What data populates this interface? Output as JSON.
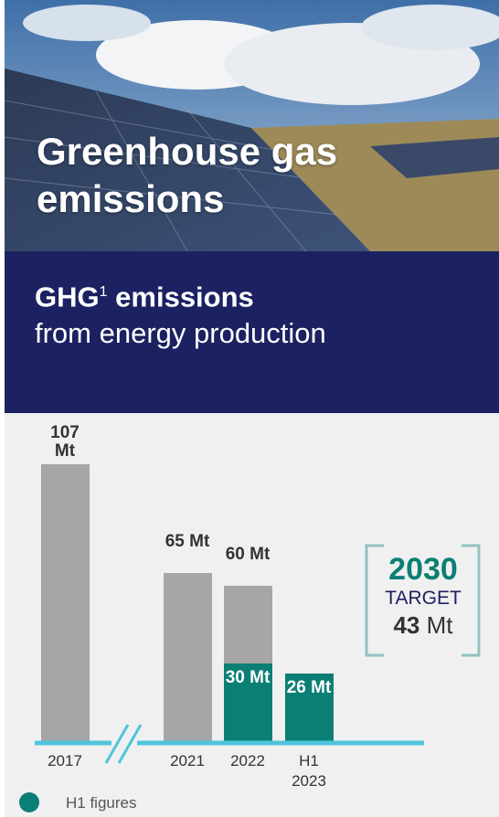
{
  "header": {
    "title": "Greenhouse gas emissions",
    "subtitle_bold": "GHG",
    "footnote_marker": "1",
    "subtitle_bold_rest": "emissions",
    "subtitle": "from energy production"
  },
  "chart_data": {
    "type": "bar",
    "categories": [
      "2017",
      "2021",
      "2022",
      "H1 2023"
    ],
    "series": [
      {
        "color": "#a6a6a6",
        "values": [
          107,
          65,
          60,
          null
        ],
        "value_labels": [
          "107 Mt",
          "65 Mt",
          "60 Mt",
          null
        ]
      },
      {
        "name": "H1 figures",
        "color": "#0b7f74",
        "values": [
          null,
          null,
          30,
          26
        ],
        "value_labels": [
          null,
          null,
          "30 Mt",
          "26 Mt"
        ]
      }
    ],
    "ylim": [
      0,
      107
    ]
  },
  "target": {
    "year": "2030",
    "label": "TARGET",
    "value": "43",
    "unit": "Mt"
  }
}
